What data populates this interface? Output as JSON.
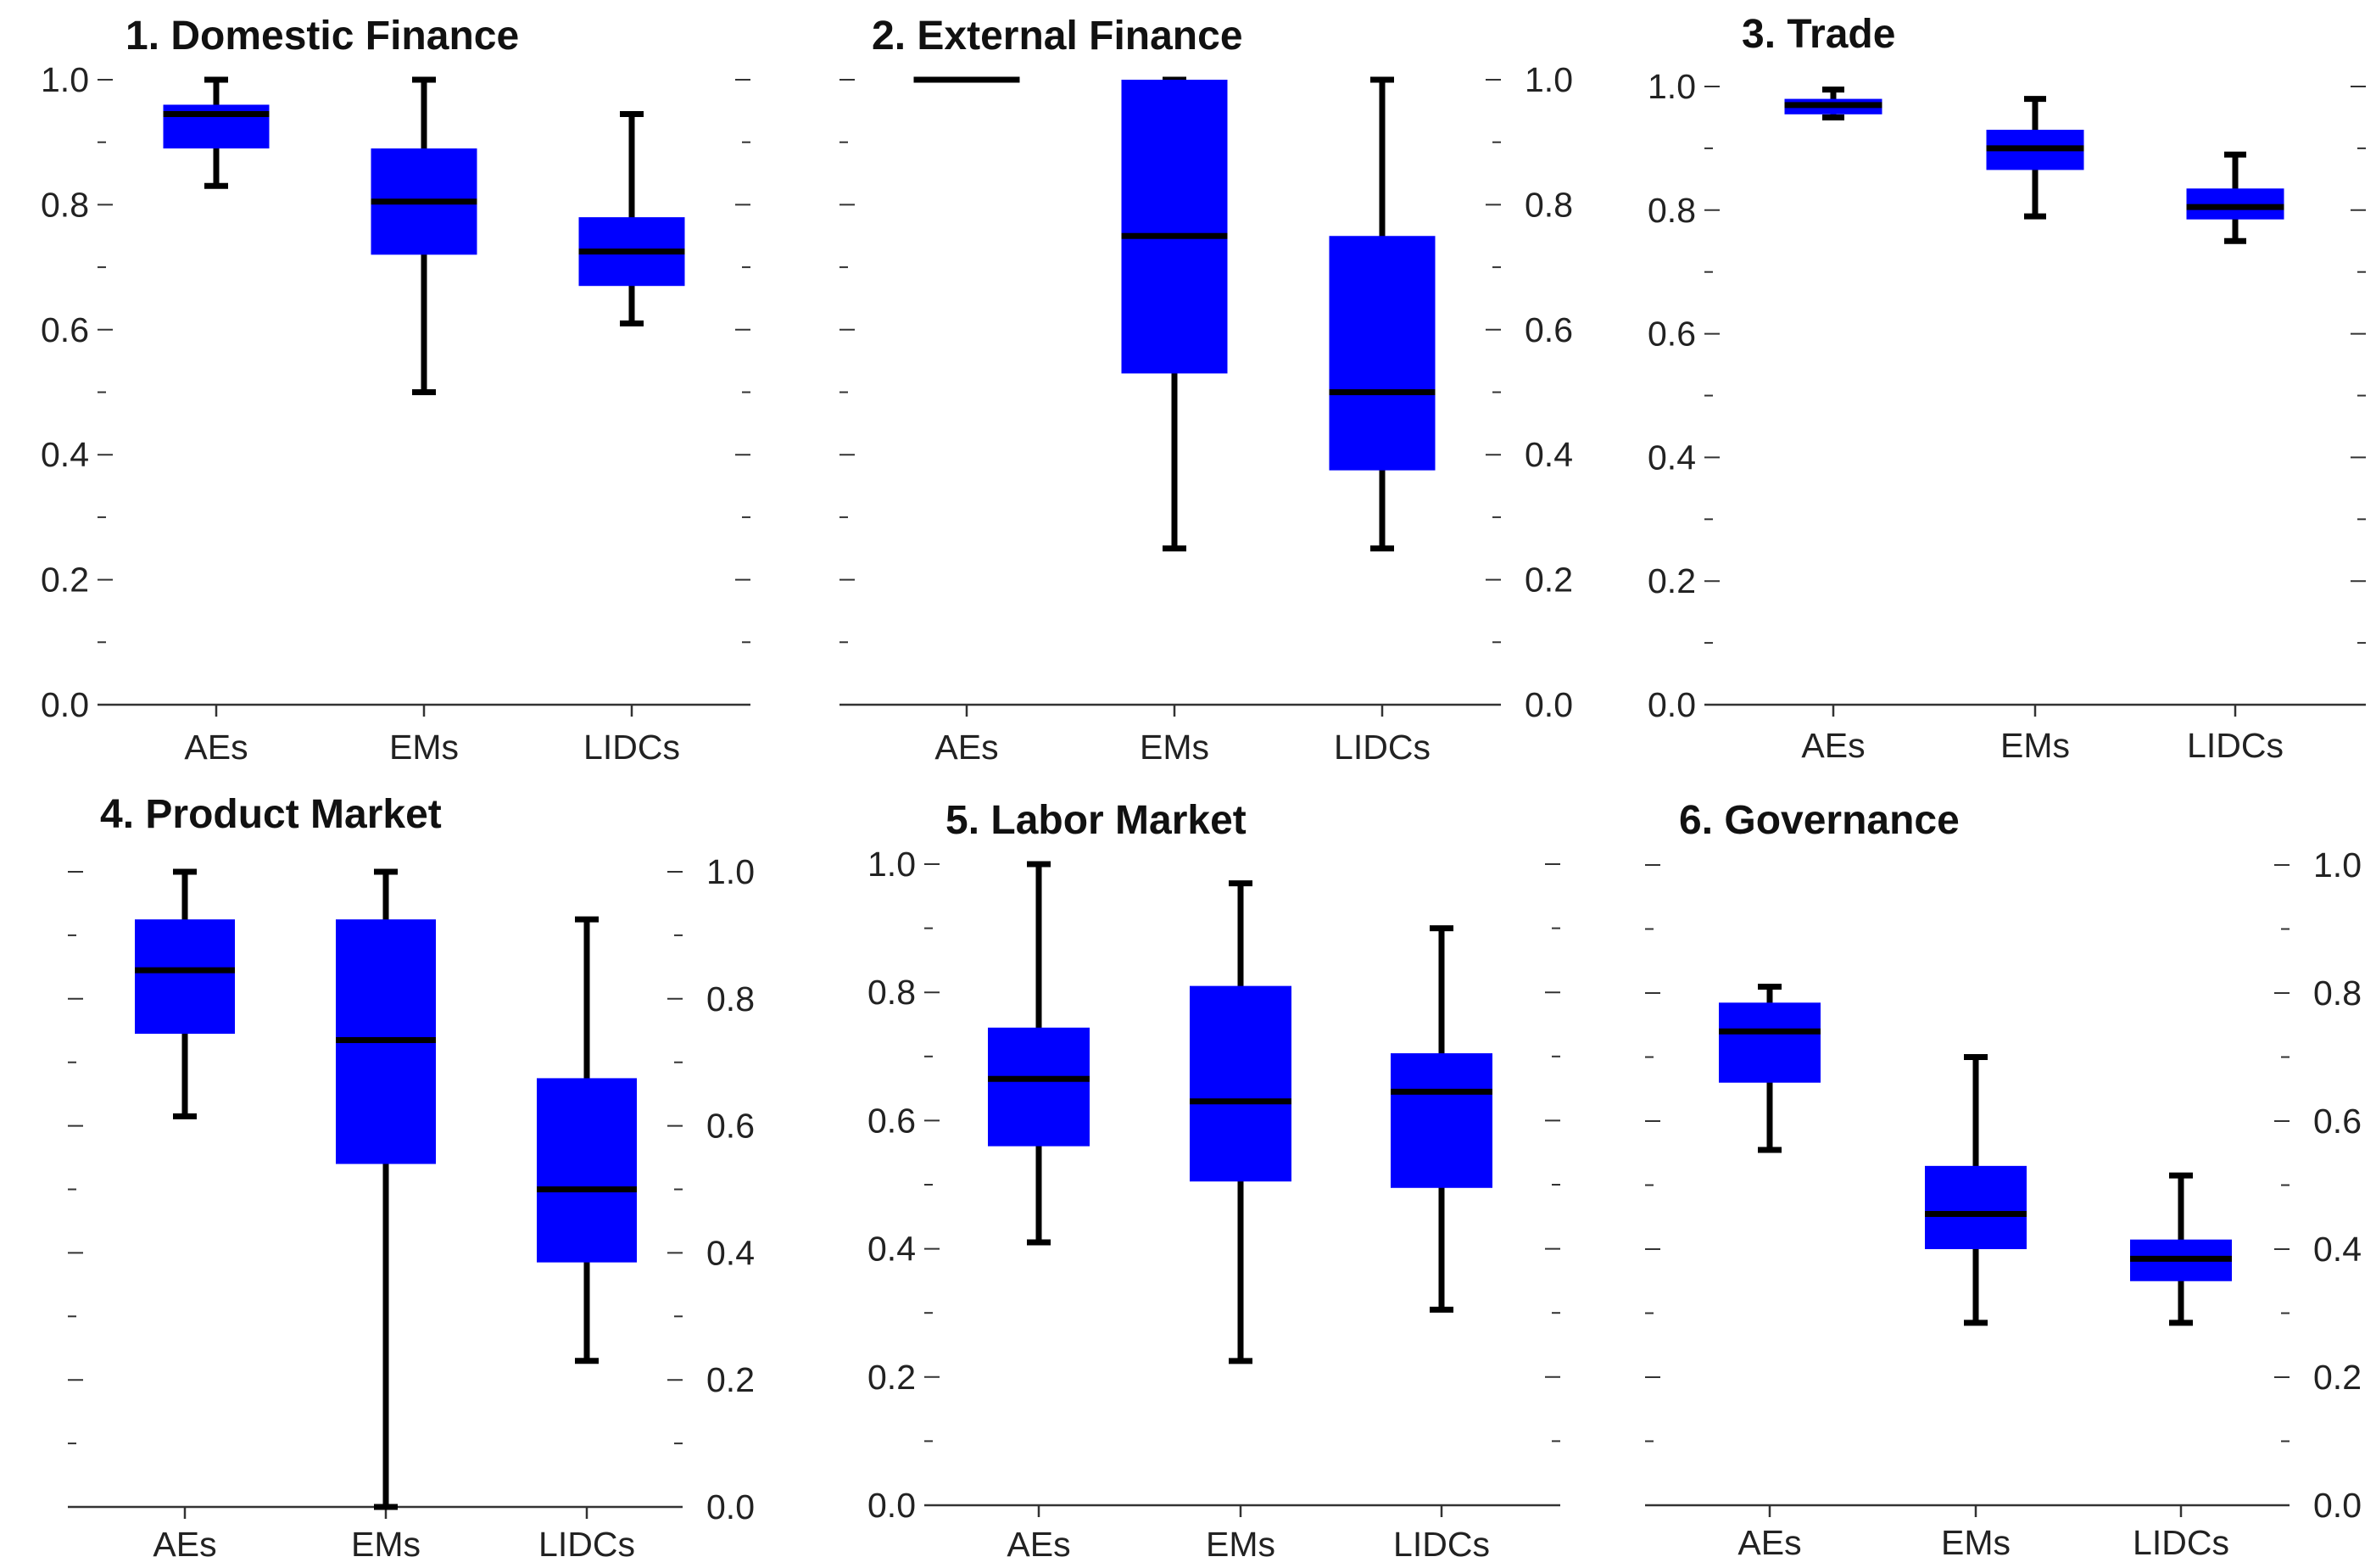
{
  "colors": {
    "box_fill": "#0000ff",
    "median": "#000000",
    "whisker": "#000000",
    "axis": "#333333",
    "text": "#222222",
    "background": "#ffffff"
  },
  "chart_data": [
    {
      "type": "boxplot",
      "title": "1. Domestic Finance",
      "categories": [
        "AEs",
        "EMs",
        "LIDCs"
      ],
      "y_axis_side": "left",
      "ylim": [
        0,
        1
      ],
      "yticks": [
        "0.0",
        "0.2",
        "0.4",
        "0.6",
        "0.8",
        "1.0"
      ],
      "boxes": [
        {
          "min": 0.83,
          "q1": 0.89,
          "median": 0.945,
          "q3": 0.96,
          "max": 1.0
        },
        {
          "min": 0.5,
          "q1": 0.72,
          "median": 0.805,
          "q3": 0.89,
          "max": 1.0
        },
        {
          "min": 0.61,
          "q1": 0.67,
          "median": 0.725,
          "q3": 0.78,
          "max": 0.945
        }
      ]
    },
    {
      "type": "boxplot",
      "title": "2. External Finance",
      "categories": [
        "AEs",
        "EMs",
        "LIDCs"
      ],
      "y_axis_side": "right",
      "ylim": [
        0,
        1
      ],
      "yticks": [
        "0.0",
        "0.2",
        "0.4",
        "0.6",
        "0.8",
        "1.0"
      ],
      "boxes": [
        {
          "min": 1.0,
          "q1": 1.0,
          "median": 1.0,
          "q3": 1.0,
          "max": 1.0
        },
        {
          "min": 0.25,
          "q1": 0.53,
          "median": 0.75,
          "q3": 1.0,
          "max": 1.0
        },
        {
          "min": 0.25,
          "q1": 0.375,
          "median": 0.5,
          "q3": 0.75,
          "max": 1.0
        }
      ]
    },
    {
      "type": "boxplot",
      "title": "3. Trade",
      "categories": [
        "AEs",
        "EMs",
        "LIDCs"
      ],
      "y_axis_side": "left",
      "ylim": [
        0,
        1
      ],
      "yticks": [
        "0.0",
        "0.2",
        "0.4",
        "0.6",
        "0.8",
        "1.0"
      ],
      "boxes": [
        {
          "min": 0.95,
          "q1": 0.955,
          "median": 0.97,
          "q3": 0.98,
          "max": 0.995
        },
        {
          "min": 0.79,
          "q1": 0.865,
          "median": 0.9,
          "q3": 0.93,
          "max": 0.98
        },
        {
          "min": 0.75,
          "q1": 0.785,
          "median": 0.805,
          "q3": 0.835,
          "max": 0.89
        }
      ]
    },
    {
      "type": "boxplot",
      "title": "4. Product Market",
      "categories": [
        "AEs",
        "EMs",
        "LIDCs"
      ],
      "y_axis_side": "right",
      "ylim": [
        0,
        1
      ],
      "yticks": [
        "0.0",
        "0.2",
        "0.4",
        "0.6",
        "0.8",
        "1.0"
      ],
      "boxes": [
        {
          "min": 0.615,
          "q1": 0.745,
          "median": 0.845,
          "q3": 0.925,
          "max": 1.0
        },
        {
          "min": 0.0,
          "q1": 0.54,
          "median": 0.735,
          "q3": 0.925,
          "max": 1.0
        },
        {
          "min": 0.23,
          "q1": 0.385,
          "median": 0.5,
          "q3": 0.675,
          "max": 0.925
        }
      ]
    },
    {
      "type": "boxplot",
      "title": "5. Labor Market",
      "categories": [
        "AEs",
        "EMs",
        "LIDCs"
      ],
      "y_axis_side": "left",
      "ylim": [
        0,
        1
      ],
      "yticks": [
        "0.0",
        "0.2",
        "0.4",
        "0.6",
        "0.8",
        "1.0"
      ],
      "boxes": [
        {
          "min": 0.41,
          "q1": 0.56,
          "median": 0.665,
          "q3": 0.745,
          "max": 1.0
        },
        {
          "min": 0.225,
          "q1": 0.505,
          "median": 0.63,
          "q3": 0.81,
          "max": 0.97
        },
        {
          "min": 0.305,
          "q1": 0.495,
          "median": 0.645,
          "q3": 0.705,
          "max": 0.9
        }
      ]
    },
    {
      "type": "boxplot",
      "title": "6. Governance",
      "categories": [
        "AEs",
        "EMs",
        "LIDCs"
      ],
      "y_axis_side": "right",
      "ylim": [
        0,
        1
      ],
      "yticks": [
        "0.0",
        "0.2",
        "0.4",
        "0.6",
        "0.8",
        "1.0"
      ],
      "boxes": [
        {
          "min": 0.555,
          "q1": 0.66,
          "median": 0.74,
          "q3": 0.785,
          "max": 0.81
        },
        {
          "min": 0.285,
          "q1": 0.4,
          "median": 0.455,
          "q3": 0.53,
          "max": 0.7
        },
        {
          "min": 0.285,
          "q1": 0.35,
          "median": 0.385,
          "q3": 0.415,
          "max": 0.515
        }
      ]
    }
  ]
}
